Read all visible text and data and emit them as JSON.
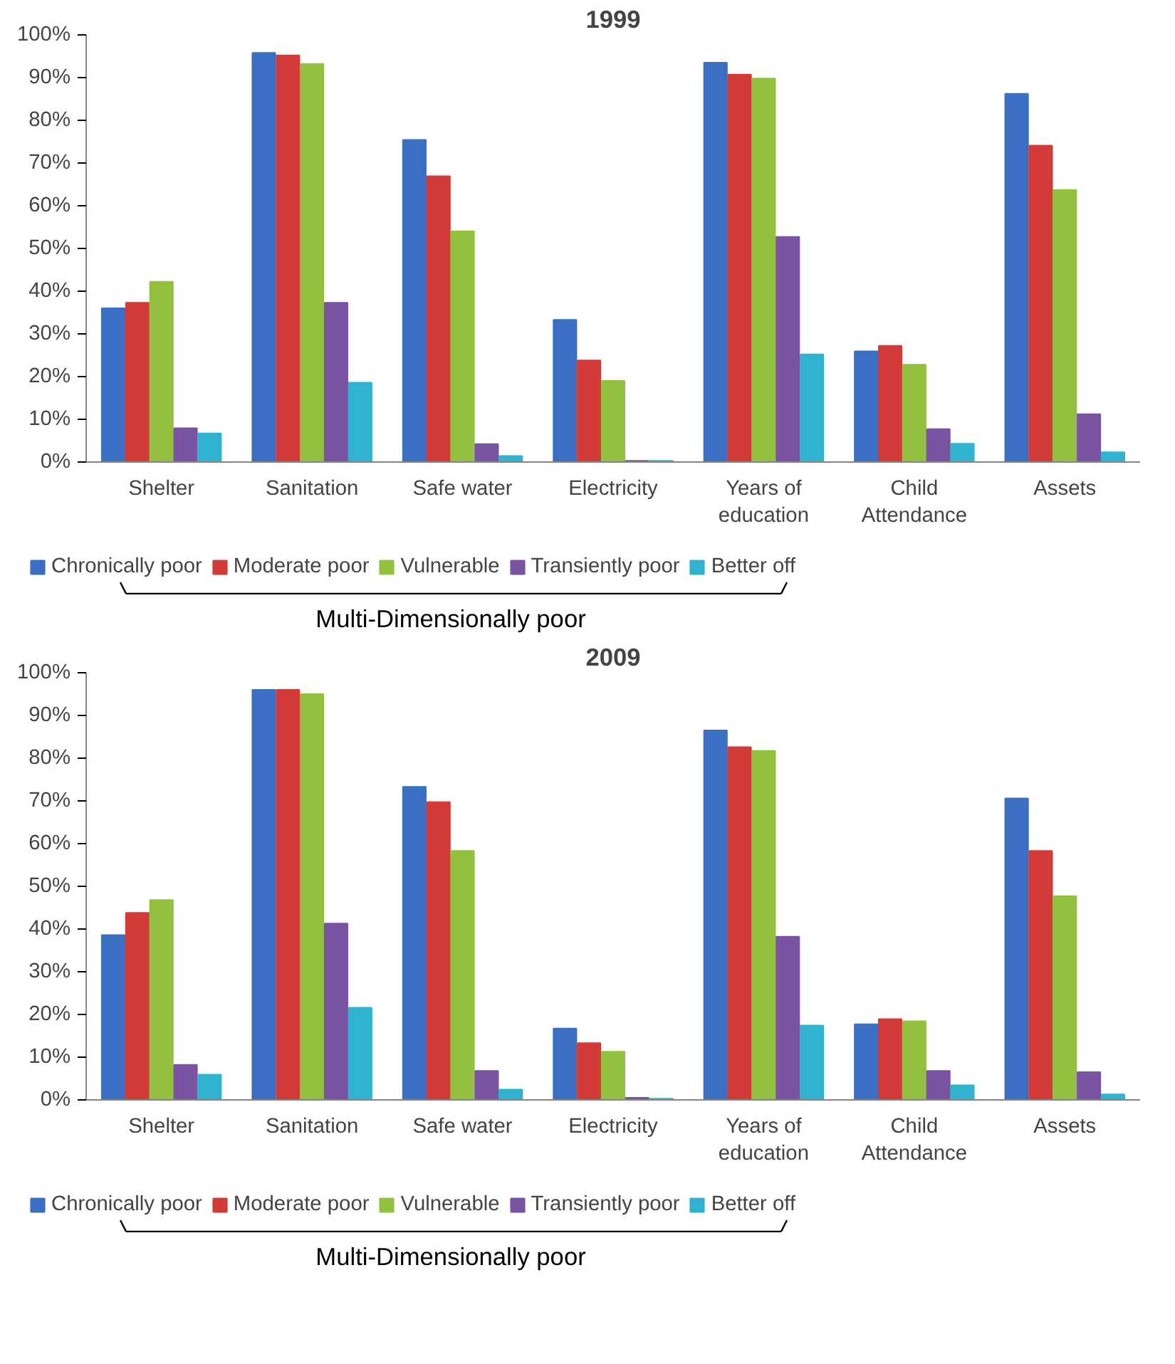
{
  "chart_data": [
    {
      "type": "bar",
      "title": "1999",
      "categories": [
        "Shelter",
        "Sanitation",
        "Safe water",
        "Electricity",
        "Years of education",
        "Child Attendance",
        "Assets"
      ],
      "series": [
        {
          "name": "Chronically poor",
          "color": "#3a6fc4",
          "values": [
            36,
            95.8,
            75.4,
            33.3,
            93.5,
            25.9,
            86.2
          ]
        },
        {
          "name": "Moderate poor",
          "color": "#d23b38",
          "values": [
            37.3,
            95.2,
            66.9,
            23.8,
            90.7,
            27.2,
            74.1
          ]
        },
        {
          "name": "Vulnerable",
          "color": "#93c13f",
          "values": [
            42.2,
            93.2,
            54,
            19,
            89.8,
            22.8,
            63.7
          ]
        },
        {
          "name": "Transiently poor",
          "color": "#7b53a3",
          "values": [
            7.9,
            37.3,
            4.2,
            0.3,
            52.7,
            7.7,
            11.2
          ]
        },
        {
          "name": "Better off",
          "color": "#2fb3cf",
          "values": [
            6.7,
            18.6,
            1.4,
            0.3,
            25.2,
            4.3,
            2.3
          ]
        }
      ],
      "ylim": [
        0,
        100
      ],
      "yticks": [
        {
          "value": 0,
          "label": "0%"
        },
        {
          "value": 10,
          "label": "10%"
        },
        {
          "value": 20,
          "label": "20%"
        },
        {
          "value": 30,
          "label": "30%"
        },
        {
          "value": 40,
          "label": "40%"
        },
        {
          "value": 50,
          "label": "50%"
        },
        {
          "value": 60,
          "label": "60%"
        },
        {
          "value": 70,
          "label": "70%"
        },
        {
          "value": 80,
          "label": "80%"
        },
        {
          "value": 90,
          "label": "90%"
        },
        {
          "value": 100,
          "label": "100%"
        }
      ],
      "grid": false,
      "legend": "bottom",
      "annotations": [
        "Multi-Dimensionally poor"
      ]
    },
    {
      "type": "bar",
      "title": "2009",
      "categories": [
        "Shelter",
        "Sanitation",
        "Safe water",
        "Electricity",
        "Years of education",
        "Child Attendance",
        "Assets"
      ],
      "series": [
        {
          "name": "Chronically poor",
          "color": "#3a6fc4",
          "values": [
            38.6,
            96,
            73.3,
            16.7,
            86.5,
            17.7,
            70.6
          ]
        },
        {
          "name": "Moderate poor",
          "color": "#d23b38",
          "values": [
            43.8,
            96,
            69.7,
            13.3,
            82.6,
            18.9,
            58.3
          ]
        },
        {
          "name": "Vulnerable",
          "color": "#93c13f",
          "values": [
            46.8,
            95,
            58.3,
            11.3,
            81.7,
            18.4,
            47.7
          ]
        },
        {
          "name": "Transiently poor",
          "color": "#7b53a3",
          "values": [
            8.2,
            41.3,
            6.8,
            0.5,
            38.2,
            6.8,
            6.5
          ]
        },
        {
          "name": "Better off",
          "color": "#2fb3cf",
          "values": [
            5.9,
            21.6,
            2.4,
            0.3,
            17.4,
            3.4,
            1.3
          ]
        }
      ],
      "ylim": [
        0,
        100
      ],
      "yticks": [
        {
          "value": 0,
          "label": "0%"
        },
        {
          "value": 10,
          "label": "10%"
        },
        {
          "value": 20,
          "label": "20%"
        },
        {
          "value": 30,
          "label": "30%"
        },
        {
          "value": 40,
          "label": "40%"
        },
        {
          "value": 50,
          "label": "50%"
        },
        {
          "value": 60,
          "label": "60%"
        },
        {
          "value": 70,
          "label": "70%"
        },
        {
          "value": 80,
          "label": "80%"
        },
        {
          "value": 90,
          "label": "90%"
        },
        {
          "value": 100,
          "label": "100%"
        }
      ],
      "grid": false,
      "legend": "bottom",
      "annotations": [
        "Multi-Dimensionally poor"
      ]
    }
  ]
}
